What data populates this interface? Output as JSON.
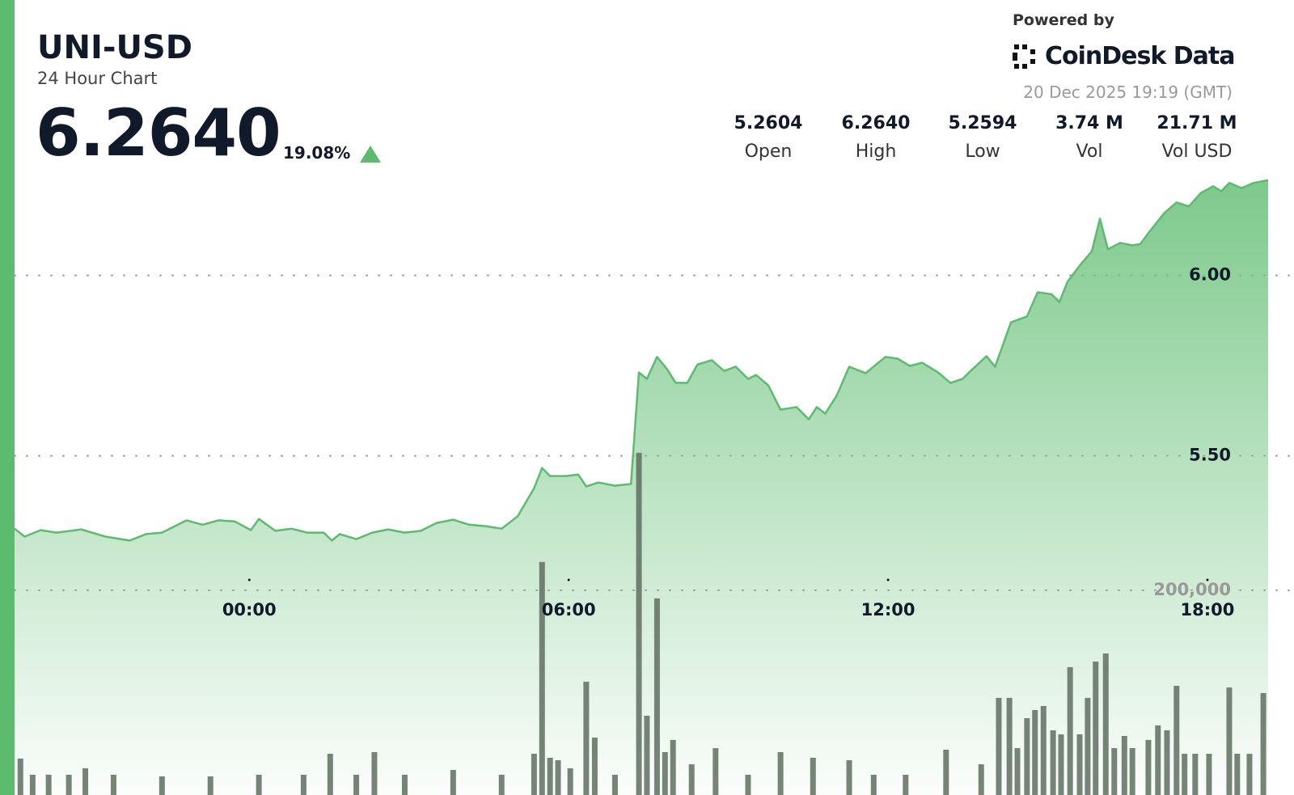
{
  "header": {
    "title": "UNI-USD",
    "subtitle": "24 Hour Chart",
    "price": "6.2640",
    "change": "19.08%",
    "stats": [
      {
        "value": "5.2604",
        "label": "Open"
      },
      {
        "value": "6.2640",
        "label": "High"
      },
      {
        "value": "5.2594",
        "label": "Low"
      },
      {
        "value": "3.74 M",
        "label": "Vol"
      },
      {
        "value": "21.71 M",
        "label": "Vol USD"
      }
    ],
    "powered_by": "Powered by",
    "brand": "CoinDesk Data",
    "timestamp": "20 Dec 2025 19:19 (GMT)"
  },
  "chart_data": {
    "type": "line",
    "color": "#5dbb6f",
    "grid": true,
    "x": [
      -4.41,
      -4.22,
      -3.92,
      -3.62,
      -3.16,
      -2.7,
      -2.25,
      -1.94,
      -1.64,
      -1.18,
      -0.88,
      -0.58,
      -0.27,
      0.03,
      0.18,
      0.49,
      0.79,
      1.09,
      1.4,
      1.55,
      1.7,
      2.01,
      2.31,
      2.61,
      2.92,
      3.22,
      3.52,
      3.83,
      4.13,
      4.44,
      4.74,
      5.04,
      5.35,
      5.5,
      5.65,
      5.95,
      6.18,
      6.33,
      6.56,
      6.87,
      7.17,
      7.32,
      7.47,
      7.66,
      7.85,
      8.01,
      8.23,
      8.42,
      8.69,
      8.92,
      9.14,
      9.37,
      9.52,
      9.75,
      9.98,
      10.28,
      10.51,
      10.66,
      10.82,
      11.04,
      11.27,
      11.58,
      11.95,
      12.18,
      12.41,
      12.64,
      12.94,
      13.17,
      13.4,
      13.55,
      13.85,
      14.01,
      14.31,
      14.61,
      14.81,
      15.07,
      15.22,
      15.37,
      15.6,
      15.83,
      15.98,
      16.13,
      16.36,
      16.59,
      16.74,
      16.89,
      17.19,
      17.42,
      17.65,
      17.88,
      18.11,
      18.26,
      18.41,
      18.64,
      18.87,
      19.14
    ],
    "values": [
      5.298,
      5.276,
      5.294,
      5.287,
      5.296,
      5.276,
      5.265,
      5.283,
      5.287,
      5.321,
      5.309,
      5.321,
      5.318,
      5.294,
      5.325,
      5.292,
      5.298,
      5.287,
      5.287,
      5.265,
      5.283,
      5.269,
      5.287,
      5.296,
      5.287,
      5.292,
      5.314,
      5.323,
      5.309,
      5.305,
      5.298,
      5.332,
      5.41,
      5.466,
      5.444,
      5.444,
      5.448,
      5.415,
      5.426,
      5.417,
      5.422,
      5.731,
      5.713,
      5.774,
      5.74,
      5.702,
      5.702,
      5.753,
      5.765,
      5.735,
      5.747,
      5.713,
      5.724,
      5.695,
      5.628,
      5.635,
      5.601,
      5.635,
      5.617,
      5.668,
      5.747,
      5.729,
      5.774,
      5.769,
      5.749,
      5.758,
      5.731,
      5.702,
      5.713,
      5.735,
      5.776,
      5.747,
      5.87,
      5.886,
      5.953,
      5.948,
      5.926,
      5.982,
      6.027,
      6.067,
      6.157,
      6.072,
      6.09,
      6.083,
      6.087,
      6.117,
      6.173,
      6.202,
      6.191,
      6.229,
      6.247,
      6.233,
      6.256,
      6.242,
      6.256,
      6.264
    ],
    "xlim": [
      -4.41,
      19.14
    ],
    "xticks": [
      {
        "value": 0,
        "label": "00:00"
      },
      {
        "value": 6,
        "label": "06:00"
      },
      {
        "value": 12,
        "label": "12:00"
      },
      {
        "value": 18,
        "label": "18:00"
      }
    ],
    "ylim": [
      4.56,
      6.27
    ],
    "yticks": [
      {
        "value": 5.5,
        "label": "5.50"
      },
      {
        "value": 6,
        "label": "6.00"
      }
    ],
    "y2lim": [
      0,
      603000
    ],
    "y2ticks": [
      {
        "value": 200000,
        "label": "200,000"
      }
    ],
    "volume": {
      "axis": "y2",
      "color": "#5f6e60",
      "x": [
        -4.3,
        -4.07,
        -3.77,
        -3.39,
        -3.08,
        -2.55,
        -1.64,
        -0.73,
        0.18,
        1.02,
        1.52,
        2.01,
        2.35,
        2.92,
        3.83,
        4.74,
        5.35,
        5.5,
        5.65,
        5.8,
        6.03,
        6.33,
        6.49,
        6.87,
        7.32,
        7.47,
        7.66,
        7.81,
        7.96,
        8.31,
        8.76,
        9.37,
        9.98,
        10.59,
        11.27,
        11.73,
        12.33,
        13.09,
        13.75,
        14.08,
        14.28,
        14.43,
        14.61,
        14.76,
        14.92,
        15.1,
        15.25,
        15.42,
        15.6,
        15.75,
        15.9,
        16.09,
        16.25,
        16.44,
        16.59,
        16.89,
        17.07,
        17.24,
        17.42,
        17.57,
        17.77,
        18.03,
        18.41,
        18.56,
        18.79,
        19.05
      ],
      "values": [
        35600,
        19800,
        19800,
        19800,
        26100,
        19800,
        18200,
        18200,
        19800,
        19800,
        40300,
        19800,
        41900,
        19800,
        24500,
        19800,
        40300,
        227700,
        36400,
        34000,
        26100,
        110700,
        56100,
        19800,
        334400,
        77500,
        192100,
        41900,
        53800,
        30000,
        45800,
        19800,
        41900,
        36400,
        34000,
        19800,
        19800,
        44300,
        30000,
        94900,
        94900,
        45800,
        75100,
        83000,
        87000,
        63200,
        59300,
        124900,
        59300,
        94900,
        130400,
        138300,
        45800,
        57700,
        45800,
        53800,
        68000,
        63200,
        106700,
        40300,
        40300,
        40300,
        105100,
        40300,
        40300,
        99600
      ]
    }
  }
}
